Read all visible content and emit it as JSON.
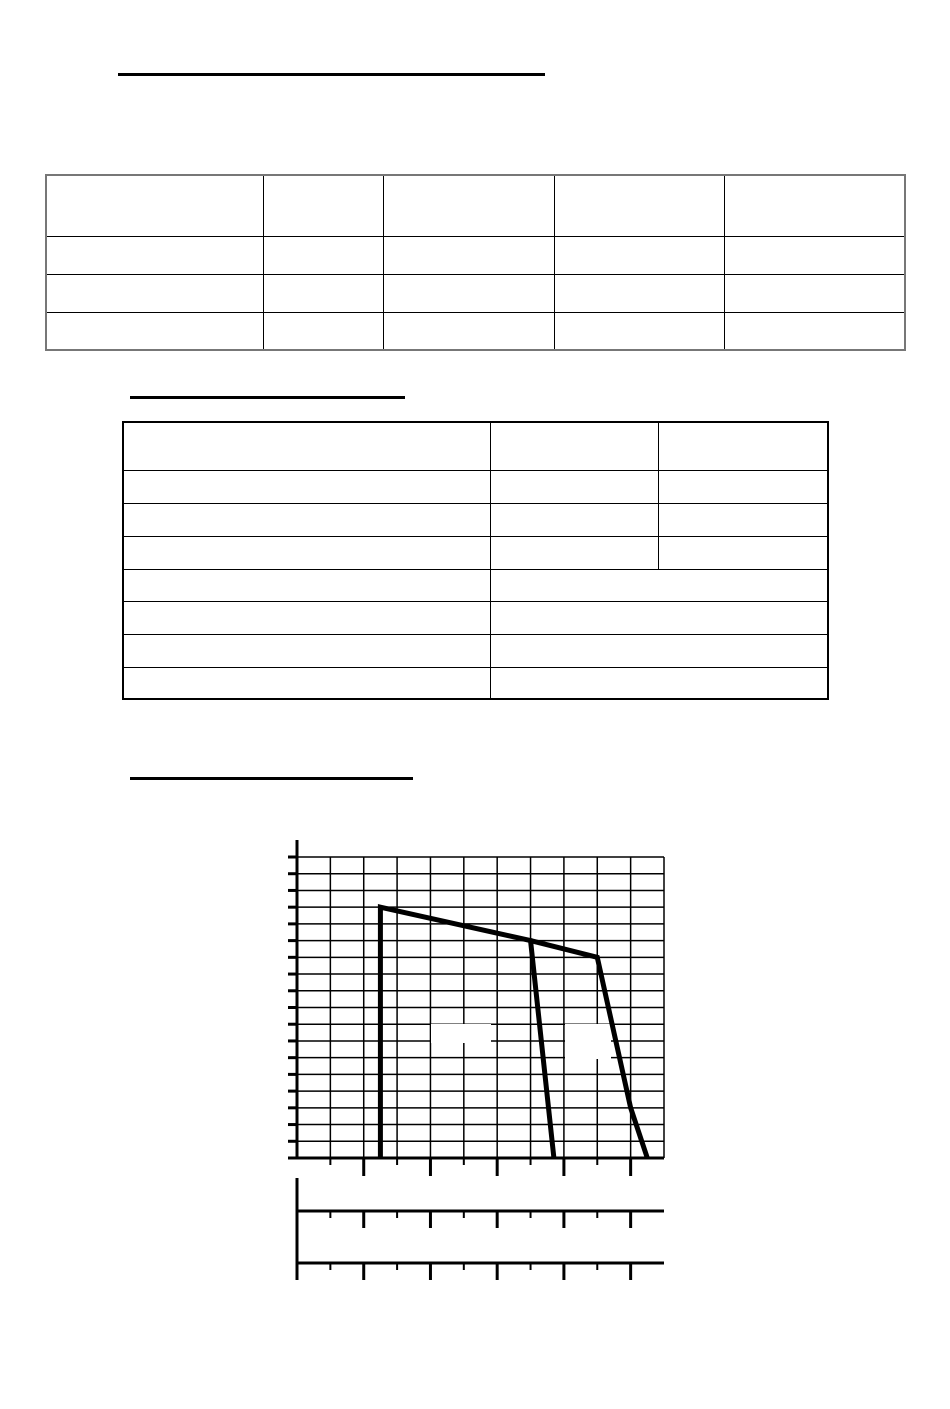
{
  "headings": [
    "",
    "",
    ""
  ],
  "table1": {
    "rows": [
      [
        "",
        "",
        "",
        "",
        ""
      ],
      [
        "",
        "",
        "",
        "",
        ""
      ],
      [
        "",
        "",
        "",
        "",
        ""
      ],
      [
        "",
        "",
        "",
        "",
        ""
      ]
    ]
  },
  "table2": {
    "rows": [
      [
        "",
        "",
        ""
      ],
      [
        "",
        "",
        ""
      ],
      [
        "",
        "",
        ""
      ],
      [
        "",
        "",
        ""
      ],
      [
        "",
        ""
      ],
      [
        "",
        ""
      ],
      [
        "",
        ""
      ],
      [
        "",
        ""
      ]
    ]
  },
  "chart_data": {
    "type": "line",
    "title": "",
    "xlabel": "",
    "ylabel": "",
    "xlim": [
      0,
      11
    ],
    "ylim": [
      0,
      18
    ],
    "grid": true,
    "series": [
      {
        "x": [
          2.5,
          2.5,
          7,
          7.7
        ],
        "y": [
          0,
          15,
          13,
          0
        ]
      },
      {
        "x": [
          7,
          9,
          10,
          10.5
        ],
        "y": [
          13,
          12,
          3,
          0
        ]
      }
    ]
  }
}
